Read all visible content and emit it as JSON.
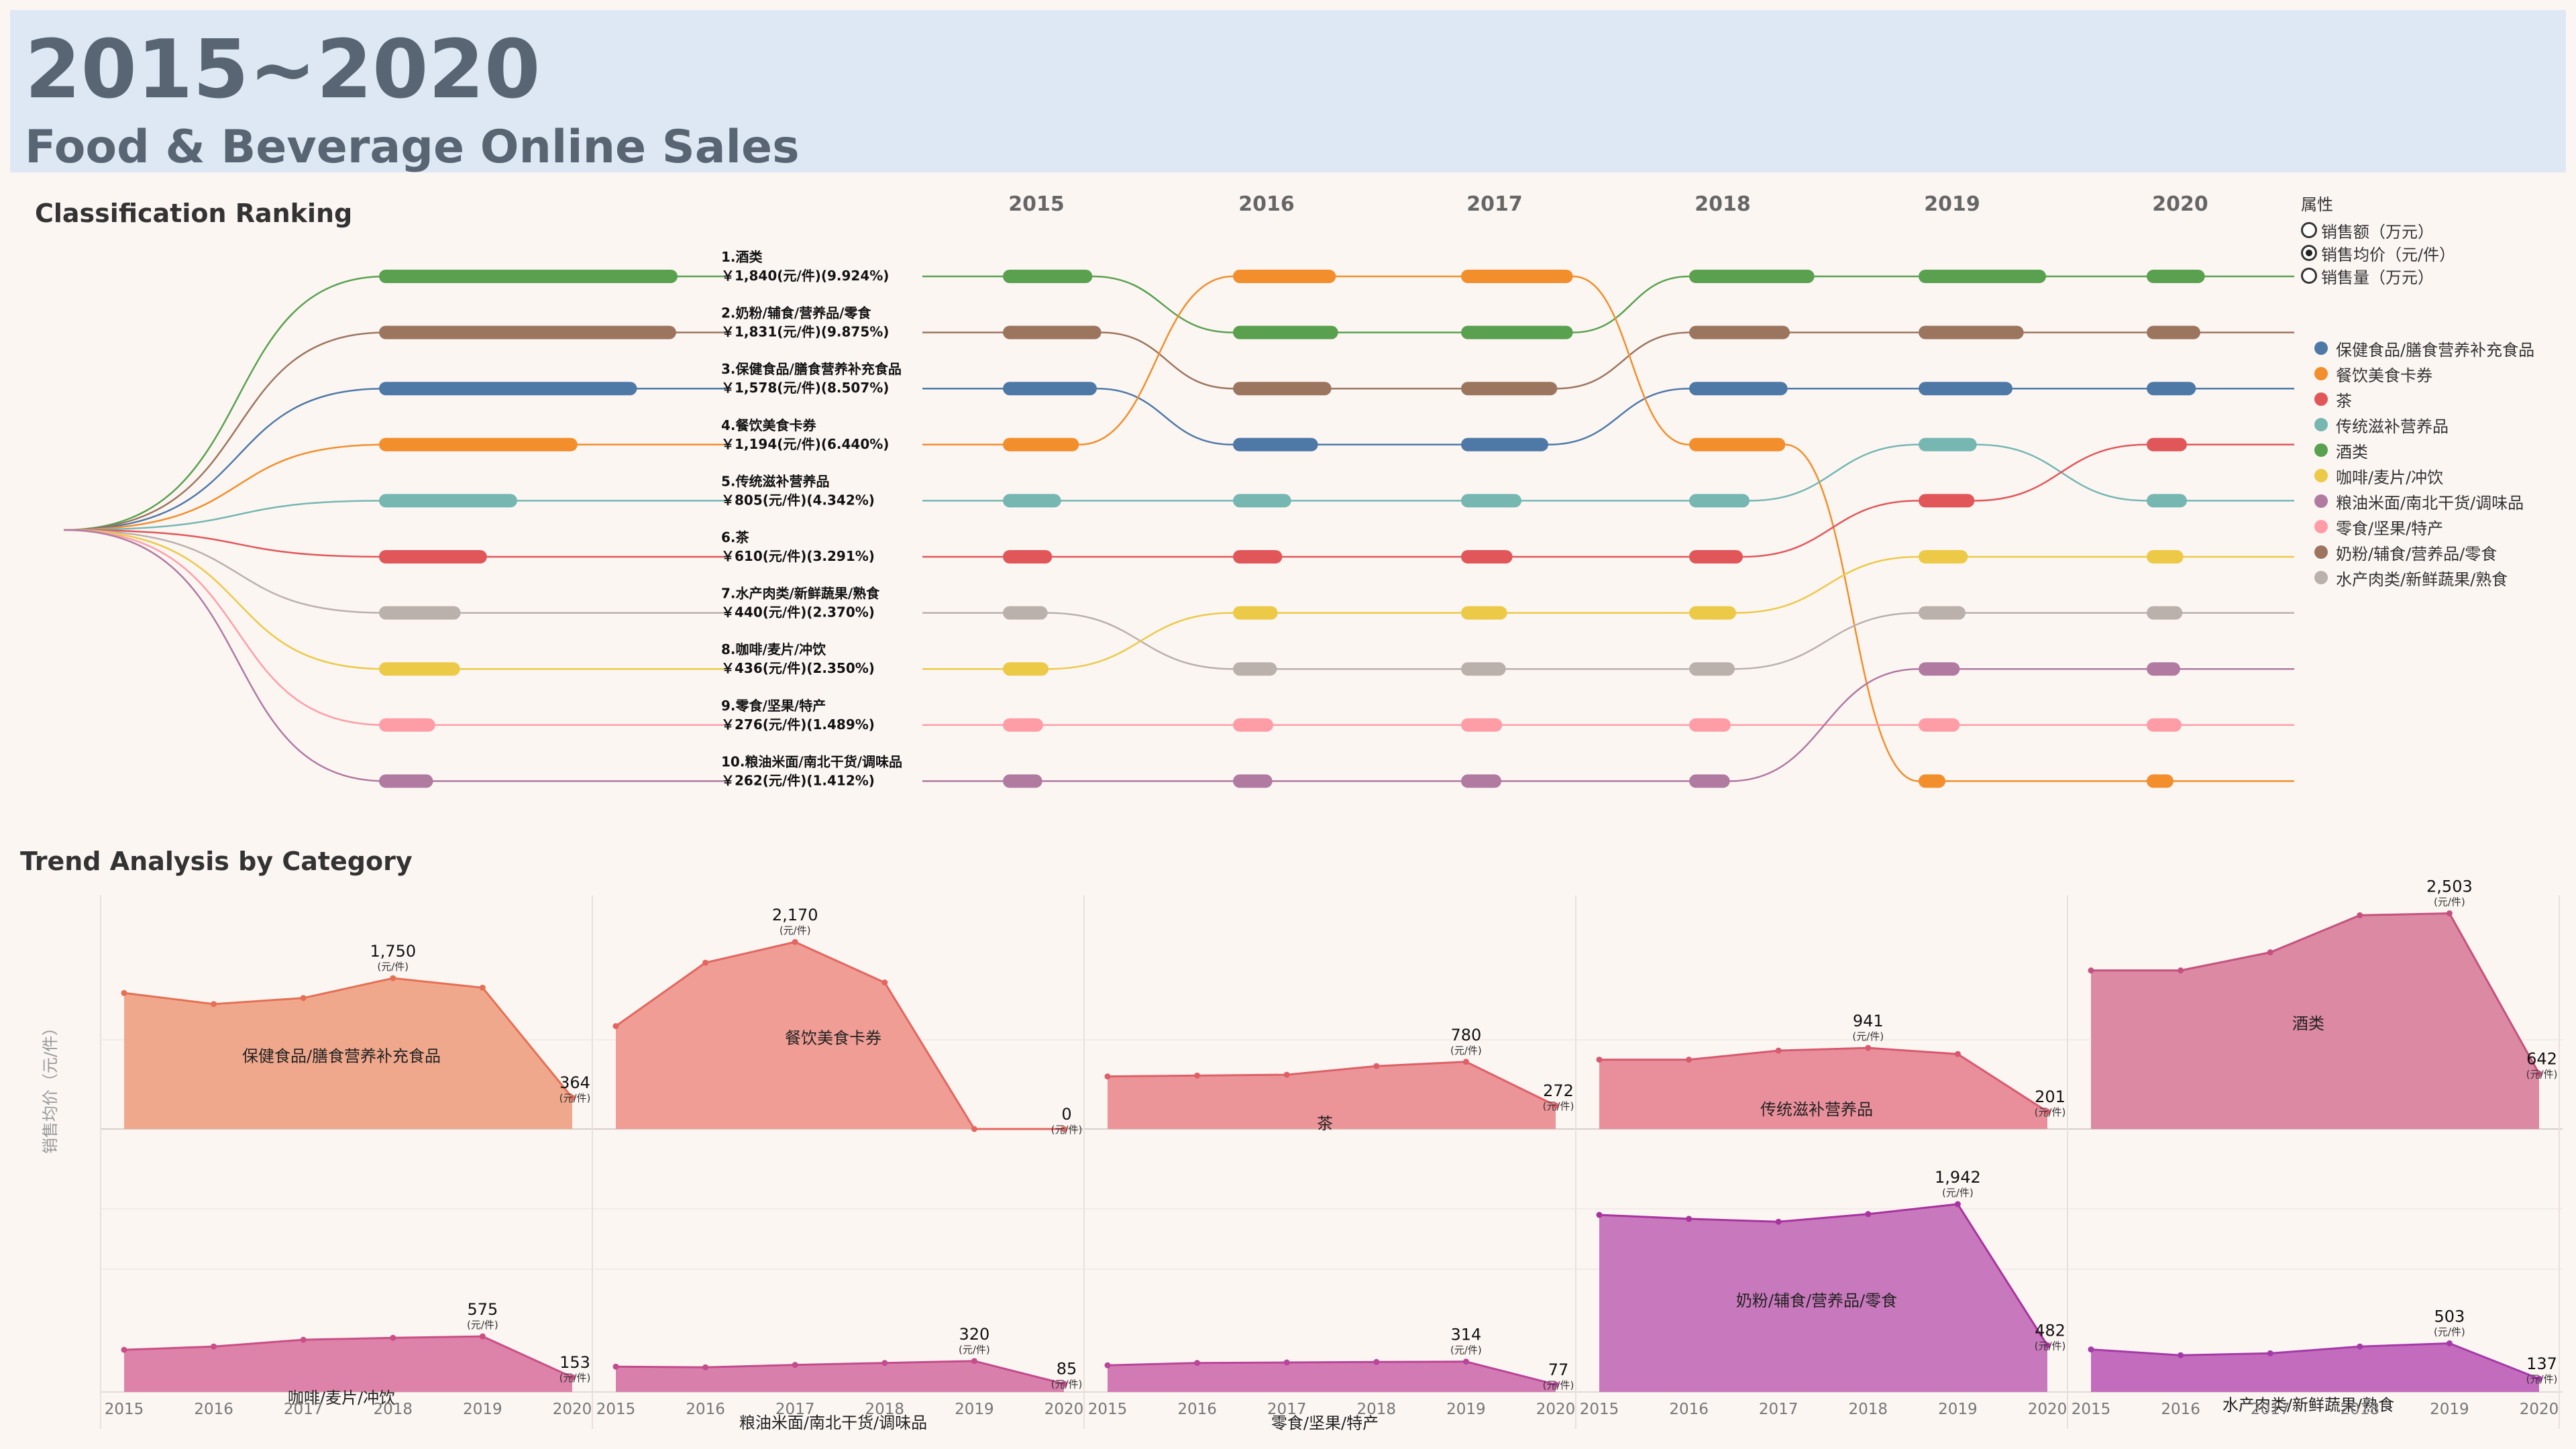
{
  "header": {
    "title": "2015~2020",
    "subtitle": "Food & Beverage Online Sales"
  },
  "sections": {
    "ranking": "Classification Ranking",
    "trend": "Trend Analysis by Category"
  },
  "attribute_legend": {
    "title": "属性",
    "options": [
      {
        "label": "销售额（万元）",
        "selected": false
      },
      {
        "label": "销售均价（元/件）",
        "selected": true
      },
      {
        "label": "销售量（万元）",
        "selected": false
      }
    ]
  },
  "category_legend": [
    {
      "label": "保健食品/膳食营养补充食品",
      "color": "#4e79a7"
    },
    {
      "label": "餐饮美食卡券",
      "color": "#f28e2b"
    },
    {
      "label": "茶",
      "color": "#e15759"
    },
    {
      "label": "传统滋补营养品",
      "color": "#76b7b2"
    },
    {
      "label": "酒类",
      "color": "#59a14f"
    },
    {
      "label": "咖啡/麦片/冲饮",
      "color": "#edc948"
    },
    {
      "label": "粮油米面/南北干货/调味品",
      "color": "#b07aa1"
    },
    {
      "label": "零食/坚果/特产",
      "color": "#ff9da7"
    },
    {
      "label": "奶粉/辅食/营养品/零食",
      "color": "#9c755f"
    },
    {
      "label": "水产肉类/新鲜蔬果/熟食",
      "color": "#bab0ac"
    }
  ],
  "chart_data": [
    {
      "type": "bar",
      "name": "ranking",
      "categories": [
        "酒类",
        "奶粉/辅食/营养品/零食",
        "保健食品/膳食营养补充食品",
        "餐饮美食卡券",
        "传统滋补营养品",
        "茶",
        "水产肉类/新鲜蔬果/熟食",
        "咖啡/麦片/冲饮",
        "零食/坚果/特产",
        "粮油米面/南北干货/调味品"
      ],
      "values": [
        1840,
        1831,
        1578,
        1194,
        805,
        610,
        440,
        436,
        276,
        262
      ],
      "labels": [
        "1.酒类",
        "￥1,840(元/件)(9.924%)",
        "2.奶粉/辅食/营养品/零食",
        "￥1,831(元/件)(9.875%)",
        "3.保健食品/膳食营养补充食品",
        "￥1,578(元/件)(8.507%)",
        "4.餐饮美食卡券",
        "￥1,194(元/件)(6.440%)",
        "5.传统滋补营养品",
        "￥805(元/件)(4.342%)",
        "6.茶",
        "￥610(元/件)(3.291%)",
        "7.水产肉类/新鲜蔬果/熟食",
        "￥440(元/件)(2.370%)",
        "8.咖啡/麦片/冲饮",
        "￥436(元/件)(2.350%)",
        "9.零食/坚果/特产",
        "￥276(元/件)(1.489%)",
        "10.粮油米面/南北干货/调味品",
        "￥262(元/件)(1.412%)"
      ]
    },
    {
      "type": "bump",
      "name": "yearly-rank",
      "years": [
        "2015",
        "2016",
        "2017",
        "2018",
        "2019",
        "2020"
      ],
      "ranks": {
        "酒类": [
          1,
          2,
          2,
          1,
          1,
          1
        ],
        "奶粉/辅食/营养品/零食": [
          2,
          3,
          3,
          2,
          2,
          2
        ],
        "保健食品/膳食营养补充食品": [
          3,
          4,
          4,
          3,
          3,
          3
        ],
        "餐饮美食卡券": [
          4,
          1,
          1,
          4,
          10,
          10
        ],
        "传统滋补营养品": [
          5,
          5,
          5,
          5,
          4,
          5
        ],
        "茶": [
          6,
          6,
          6,
          6,
          5,
          4
        ],
        "水产肉类/新鲜蔬果/熟食": [
          7,
          8,
          8,
          8,
          7,
          7
        ],
        "咖啡/麦片/冲饮": [
          8,
          7,
          7,
          7,
          6,
          6
        ],
        "零食/坚果/特产": [
          9,
          9,
          9,
          9,
          9,
          9
        ],
        "粮油米面/南北干货/调味品": [
          10,
          10,
          10,
          10,
          8,
          8
        ]
      },
      "magnitudes": {
        "酒类": [
          1400,
          1750,
          1900,
          2200,
          2250,
          700
        ],
        "奶粉/辅食/营养品/零食": [
          1600,
          1600,
          1550,
          1650,
          1750,
          600
        ],
        "保健食品/膳食营养补充食品": [
          1500,
          1300,
          1350,
          1600,
          1500,
          500
        ],
        "餐饮美食卡券": [
          1100,
          1700,
          1900,
          1550,
          0,
          0
        ],
        "传统滋补营养品": [
          700,
          700,
          750,
          750,
          700,
          300
        ],
        "茶": [
          500,
          500,
          550,
          600,
          650,
          300
        ],
        "水产肉类/新鲜蔬果/熟食": [
          400,
          380,
          400,
          420,
          450,
          200
        ],
        "咖啡/麦片/冲饮": [
          420,
          400,
          430,
          450,
          500,
          220
        ],
        "零食/坚果/特产": [
          300,
          300,
          320,
          330,
          320,
          180
        ],
        "粮油米面/南北干货/调味品": [
          280,
          280,
          300,
          310,
          320,
          150
        ]
      }
    },
    {
      "type": "area",
      "name": "trend",
      "x": [
        "2015",
        "2016",
        "2017",
        "2018",
        "2019",
        "2020"
      ],
      "ylabel": "销售均价（元/件）",
      "unit": "(元/件)",
      "series": [
        {
          "name": "保健食品/膳食营养补充食品",
          "values": [
            1578,
            1450,
            1520,
            1750,
            1640,
            364
          ],
          "max_label": "1,750",
          "last_label": "364"
        },
        {
          "name": "餐饮美食卡券",
          "values": [
            1194,
            1930,
            2170,
            1700,
            0,
            0
          ],
          "max_label": "2,170",
          "last_label": "0"
        },
        {
          "name": "茶",
          "values": [
            610,
            620,
            630,
            730,
            780,
            272
          ],
          "max_label": "780",
          "last_label": "272"
        },
        {
          "name": "传统滋补营养品",
          "values": [
            805,
            805,
            910,
            941,
            870,
            201
          ],
          "max_label": "941",
          "last_label": "201"
        },
        {
          "name": "酒类",
          "values": [
            1840,
            1840,
            2050,
            2480,
            2503,
            642
          ],
          "max_label": "2,503",
          "last_label": "642"
        },
        {
          "name": "咖啡/麦片/冲饮",
          "values": [
            436,
            470,
            540,
            560,
            575,
            153
          ],
          "max_label": "575",
          "last_label": "153"
        },
        {
          "name": "粮油米面/南北干货/调味品",
          "values": [
            262,
            255,
            280,
            300,
            320,
            85
          ],
          "max_label": "320",
          "last_label": "85"
        },
        {
          "name": "零食/坚果/特产",
          "values": [
            276,
            300,
            305,
            310,
            314,
            77
          ],
          "max_label": "314",
          "last_label": "77"
        },
        {
          "name": "奶粉/辅食/营养品/零食",
          "values": [
            1831,
            1790,
            1760,
            1840,
            1942,
            482
          ],
          "max_label": "1,942",
          "last_label": "482"
        },
        {
          "name": "水产肉类/新鲜蔬果/熟食",
          "values": [
            440,
            380,
            400,
            470,
            503,
            137
          ],
          "max_label": "503",
          "last_label": "137"
        }
      ]
    }
  ]
}
